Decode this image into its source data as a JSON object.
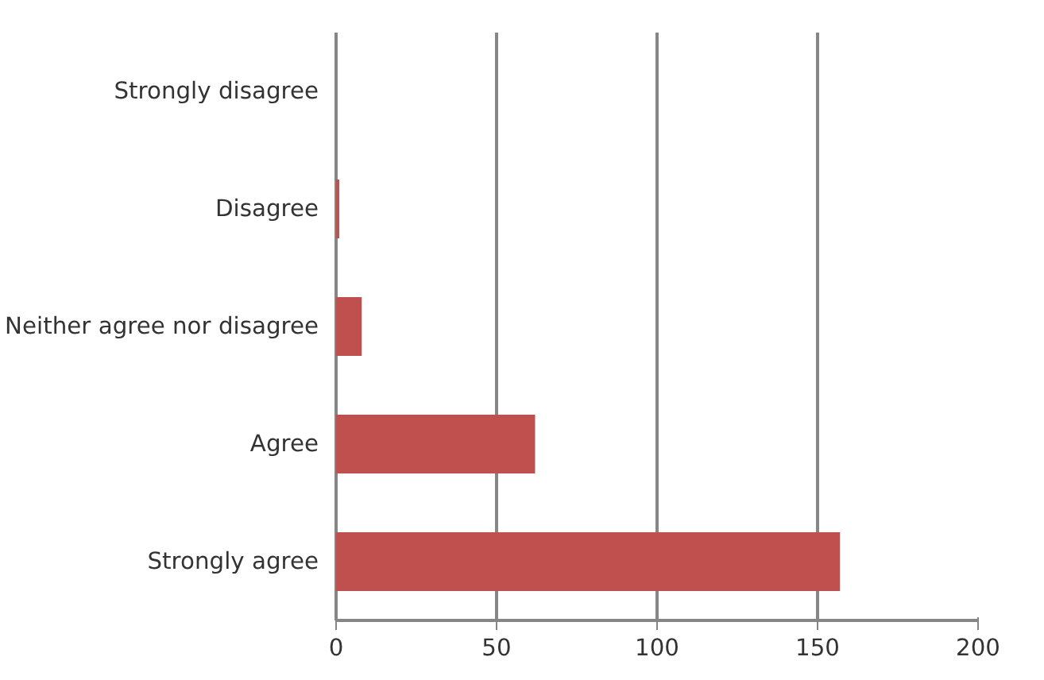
{
  "chart_data": {
    "type": "bar",
    "orientation": "horizontal",
    "categories": [
      "Strongly disagree",
      "Disagree",
      "Neither agree nor disagree",
      "Agree",
      "Strongly agree"
    ],
    "values": [
      0,
      1,
      8,
      62,
      157
    ],
    "color": "#c0504d",
    "xlim": [
      0,
      200
    ],
    "xticks": [
      0,
      50,
      100,
      150,
      200
    ],
    "grid": "x"
  }
}
